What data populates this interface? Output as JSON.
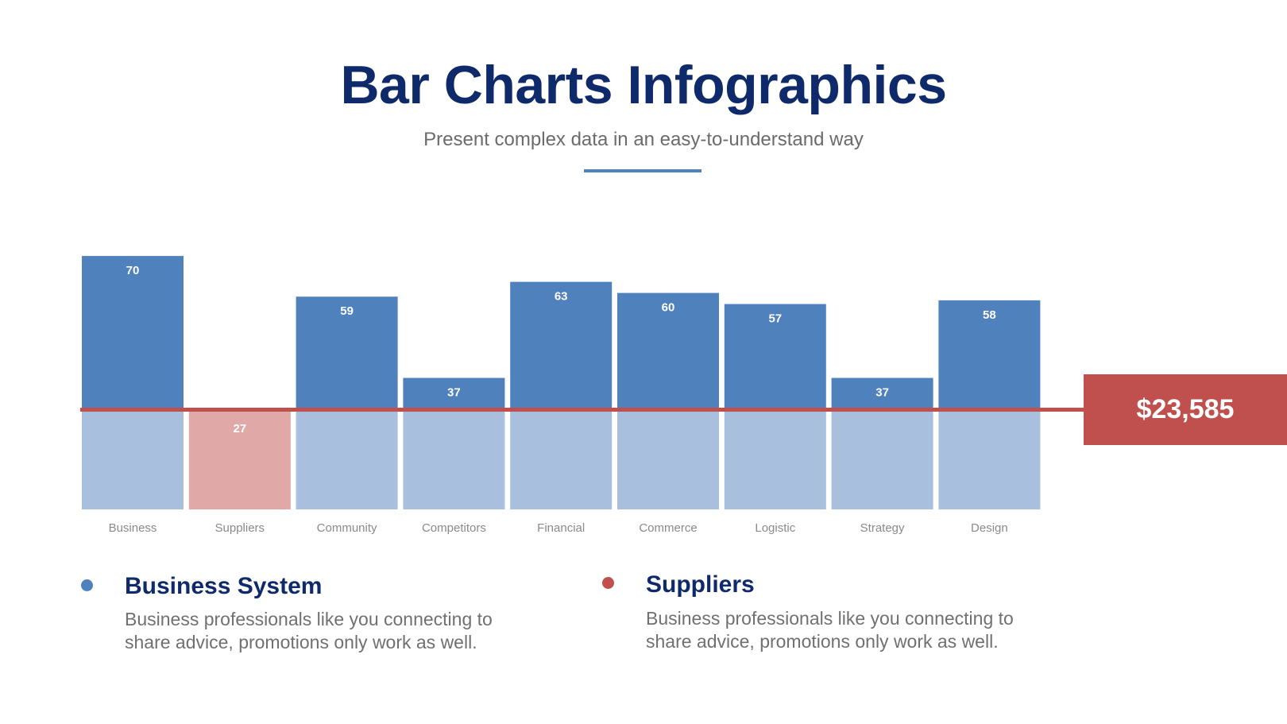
{
  "header": {
    "title": "Bar Charts Infographics",
    "subtitle": "Present complex data in an easy-to-understand way"
  },
  "chart_data": {
    "type": "bar",
    "categories": [
      "Business",
      "Suppliers",
      "Community",
      "Competitors",
      "Financial",
      "Commerce",
      "Logistic",
      "Strategy",
      "Design"
    ],
    "values": [
      70,
      27,
      59,
      37,
      63,
      60,
      57,
      37,
      58
    ],
    "highlighted_category": "Suppliers",
    "title": "",
    "xlabel": "",
    "ylabel": "",
    "grid": false,
    "colors": {
      "bar_upper": "#4f81bd",
      "bar_lower": "#a8c0de",
      "highlight": "#e0a8a7",
      "threshold_line": "#c0504d",
      "label": "#ffffff",
      "tick": "#8a8a8a"
    }
  },
  "callout": {
    "value": "$23,585",
    "color": "#c0504d"
  },
  "legend": [
    {
      "title": "Business System",
      "text": "Business professionals like you connecting to share advice, promotions only work as well.",
      "color": "#4f81bd"
    },
    {
      "title": "Suppliers",
      "text": "Business professionals like you connecting to share advice, promotions only work as well.",
      "color": "#c0504d"
    }
  ]
}
